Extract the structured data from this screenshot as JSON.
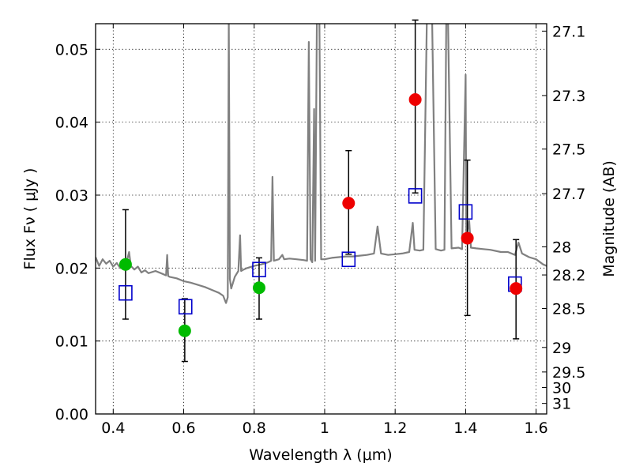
{
  "chart_data": {
    "type": "scatter",
    "xlabel": "Wavelength  λ (μm)",
    "ylabel": "Flux  Fν  ( μJy )",
    "y2label": "Magnitude (AB)",
    "xlim": [
      0.35,
      1.63
    ],
    "ylim": [
      0.0,
      0.0535
    ],
    "grid": true,
    "x_ticks": [
      0.4,
      0.6,
      0.8,
      1.0,
      1.2,
      1.4,
      1.6
    ],
    "x_tick_labels": [
      "0.4",
      "0.6",
      "0.8",
      "1",
      "1.2",
      "1.4",
      "1.6"
    ],
    "y_ticks": [
      0.0,
      0.01,
      0.02,
      0.03,
      0.04,
      0.05
    ],
    "y_tick_labels": [
      "0.00",
      "0.01",
      "0.02",
      "0.03",
      "0.04",
      "0.05"
    ],
    "mag_ticks": [
      27.1,
      27.3,
      27.5,
      27.7,
      28,
      28.2,
      28.5,
      29,
      29.5,
      30,
      31
    ],
    "mag_tick_labels": [
      "27.1",
      "27.3",
      "27.5",
      "27.7",
      "28",
      "28.2",
      "28.5",
      "29",
      "29.5",
      "30",
      "31"
    ],
    "colors": {
      "template": "#808080",
      "observed_optical": "#00bb00",
      "observed_nir": "#ee0000",
      "model": "#0000cc",
      "errorbar": "#000000"
    },
    "series": [
      {
        "kind": "template-spectrum",
        "points": [
          [
            0.35,
            0.0215
          ],
          [
            0.36,
            0.0203
          ],
          [
            0.37,
            0.0212
          ],
          [
            0.38,
            0.0206
          ],
          [
            0.39,
            0.021
          ],
          [
            0.4,
            0.0202
          ],
          [
            0.41,
            0.0207
          ],
          [
            0.42,
            0.02
          ],
          [
            0.43,
            0.0205
          ],
          [
            0.438,
            0.0208
          ],
          [
            0.445,
            0.0222
          ],
          [
            0.45,
            0.0203
          ],
          [
            0.46,
            0.0198
          ],
          [
            0.47,
            0.0202
          ],
          [
            0.48,
            0.0194
          ],
          [
            0.49,
            0.0197
          ],
          [
            0.5,
            0.0193
          ],
          [
            0.52,
            0.0196
          ],
          [
            0.54,
            0.0192
          ],
          [
            0.55,
            0.019
          ],
          [
            0.553,
            0.0218
          ],
          [
            0.556,
            0.0189
          ],
          [
            0.56,
            0.0188
          ],
          [
            0.58,
            0.0186
          ],
          [
            0.6,
            0.0182
          ],
          [
            0.62,
            0.018
          ],
          [
            0.64,
            0.0177
          ],
          [
            0.66,
            0.0174
          ],
          [
            0.68,
            0.017
          ],
          [
            0.7,
            0.0166
          ],
          [
            0.712,
            0.0162
          ],
          [
            0.72,
            0.0152
          ],
          [
            0.725,
            0.016
          ],
          [
            0.728,
            0.054
          ],
          [
            0.731,
            0.0185
          ],
          [
            0.735,
            0.0172
          ],
          [
            0.745,
            0.0188
          ],
          [
            0.755,
            0.0196
          ],
          [
            0.76,
            0.0245
          ],
          [
            0.763,
            0.0196
          ],
          [
            0.77,
            0.0198
          ],
          [
            0.78,
            0.02
          ],
          [
            0.8,
            0.0203
          ],
          [
            0.82,
            0.0205
          ],
          [
            0.84,
            0.0208
          ],
          [
            0.848,
            0.021
          ],
          [
            0.852,
            0.0325
          ],
          [
            0.856,
            0.021
          ],
          [
            0.87,
            0.0212
          ],
          [
            0.88,
            0.0218
          ],
          [
            0.885,
            0.0212
          ],
          [
            0.9,
            0.0213
          ],
          [
            0.92,
            0.0212
          ],
          [
            0.94,
            0.0211
          ],
          [
            0.95,
            0.021
          ],
          [
            0.955,
            0.051
          ],
          [
            0.96,
            0.0212
          ],
          [
            0.965,
            0.0208
          ],
          [
            0.97,
            0.0418
          ],
          [
            0.973,
            0.021
          ],
          [
            0.978,
            0.054
          ],
          [
            0.985,
            0.054
          ],
          [
            0.99,
            0.0212
          ],
          [
            1.0,
            0.0212
          ],
          [
            1.02,
            0.0214
          ],
          [
            1.04,
            0.0215
          ],
          [
            1.06,
            0.0216
          ],
          [
            1.08,
            0.0216
          ],
          [
            1.1,
            0.0217
          ],
          [
            1.12,
            0.0218
          ],
          [
            1.14,
            0.022
          ],
          [
            1.15,
            0.0257
          ],
          [
            1.16,
            0.022
          ],
          [
            1.18,
            0.0218
          ],
          [
            1.2,
            0.0219
          ],
          [
            1.22,
            0.022
          ],
          [
            1.24,
            0.0222
          ],
          [
            1.25,
            0.0262
          ],
          [
            1.255,
            0.0225
          ],
          [
            1.27,
            0.0224
          ],
          [
            1.28,
            0.0225
          ],
          [
            1.29,
            0.054
          ],
          [
            1.305,
            0.054
          ],
          [
            1.315,
            0.0226
          ],
          [
            1.33,
            0.0224
          ],
          [
            1.34,
            0.0225
          ],
          [
            1.345,
            0.054
          ],
          [
            1.35,
            0.054
          ],
          [
            1.36,
            0.0227
          ],
          [
            1.38,
            0.0228
          ],
          [
            1.39,
            0.0226
          ],
          [
            1.4,
            0.0465
          ],
          [
            1.402,
            0.024
          ],
          [
            1.41,
            0.0265
          ],
          [
            1.415,
            0.0228
          ],
          [
            1.43,
            0.0227
          ],
          [
            1.45,
            0.0226
          ],
          [
            1.47,
            0.0225
          ],
          [
            1.5,
            0.0222
          ],
          [
            1.52,
            0.0222
          ],
          [
            1.54,
            0.0218
          ],
          [
            1.55,
            0.0235
          ],
          [
            1.56,
            0.022
          ],
          [
            1.58,
            0.0215
          ],
          [
            1.6,
            0.0212
          ],
          [
            1.62,
            0.0205
          ],
          [
            1.63,
            0.0203
          ]
        ]
      },
      {
        "kind": "observed-optical",
        "points": [
          {
            "x": 0.435,
            "y": 0.0205,
            "err_low": 0.013,
            "err_high": 0.028
          },
          {
            "x": 0.603,
            "y": 0.0114,
            "err_low": 0.0072,
            "err_high": 0.0158
          },
          {
            "x": 0.814,
            "y": 0.0173,
            "err_low": 0.013,
            "err_high": 0.0214
          }
        ]
      },
      {
        "kind": "observed-nir",
        "points": [
          {
            "x": 1.068,
            "y": 0.0289,
            "err_low": 0.0219,
            "err_high": 0.0361
          },
          {
            "x": 1.257,
            "y": 0.0431,
            "err_low": 0.0303,
            "err_high": 0.054
          },
          {
            "x": 1.405,
            "y": 0.0241,
            "err_low": 0.0135,
            "err_high": 0.0348
          },
          {
            "x": 1.543,
            "y": 0.0172,
            "err_low": 0.0103,
            "err_high": 0.0239
          }
        ]
      },
      {
        "kind": "model-photometry",
        "points": [
          {
            "x": 0.435,
            "y": 0.0166
          },
          {
            "x": 0.605,
            "y": 0.0147
          },
          {
            "x": 0.814,
            "y": 0.0198
          },
          {
            "x": 1.068,
            "y": 0.0212
          },
          {
            "x": 1.257,
            "y": 0.0299
          },
          {
            "x": 1.4,
            "y": 0.0277
          },
          {
            "x": 1.54,
            "y": 0.0178
          }
        ]
      }
    ]
  }
}
